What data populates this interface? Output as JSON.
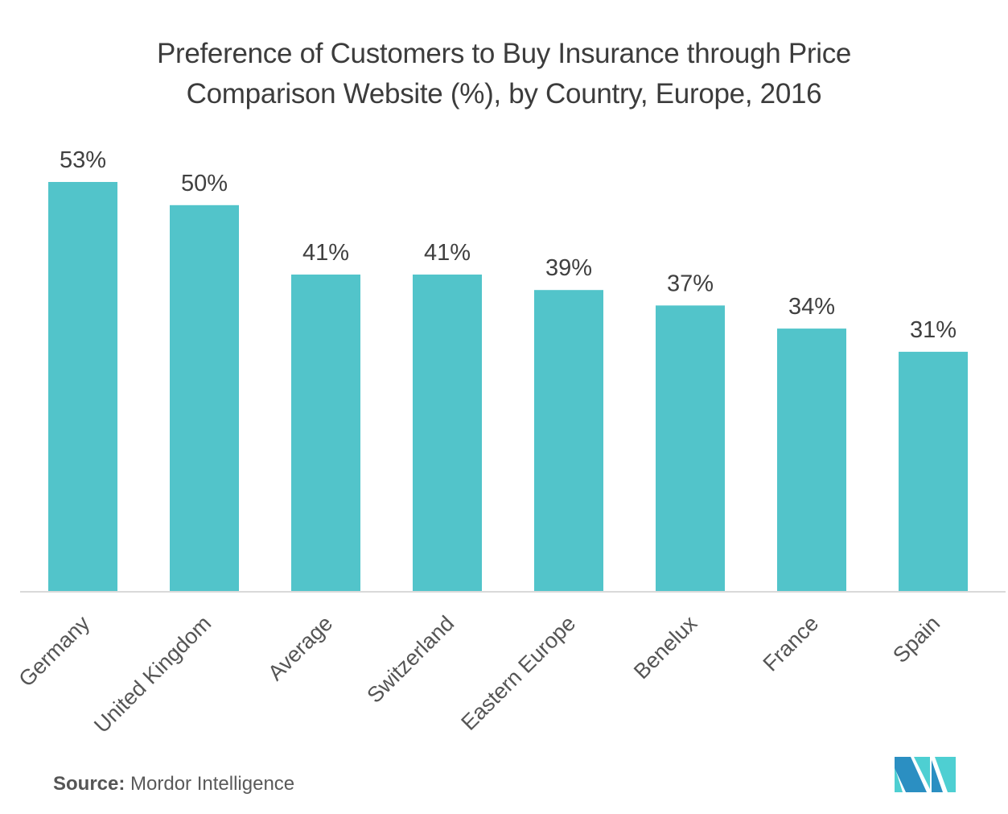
{
  "chart_data": {
    "type": "bar",
    "title": "Preference of Customers to Buy Insurance through Price Comparison Website (%), by Country, Europe, 2016",
    "title_lines": [
      "Preference of Customers to Buy Insurance through Price",
      "Comparison Website (%), by Country, Europe, 2016"
    ],
    "categories": [
      "Germany",
      "United Kingdom",
      "Average",
      "Switzerland",
      "Eastern Europe",
      "Benelux",
      "France",
      "Spain"
    ],
    "values": [
      53,
      50,
      41,
      41,
      39,
      37,
      34,
      31
    ],
    "value_labels": [
      "53%",
      "50%",
      "41%",
      "41%",
      "39%",
      "37%",
      "34%",
      "31%"
    ],
    "unit": "%",
    "xlabel": "",
    "ylabel": "",
    "ylim": [
      0,
      53
    ],
    "grid": false,
    "legend": "none",
    "category_label_rotation": "diagonal",
    "colors": {
      "bar": "#52c4ca",
      "axis": "#d9d9d9",
      "text": "#404040"
    }
  },
  "footer": {
    "source_label": "Source:",
    "source_value": "Mordor Intelligence"
  },
  "logo": {
    "name": "Mordor Intelligence logo",
    "colors": [
      "#2b8fc2",
      "#4ecfd2"
    ]
  }
}
